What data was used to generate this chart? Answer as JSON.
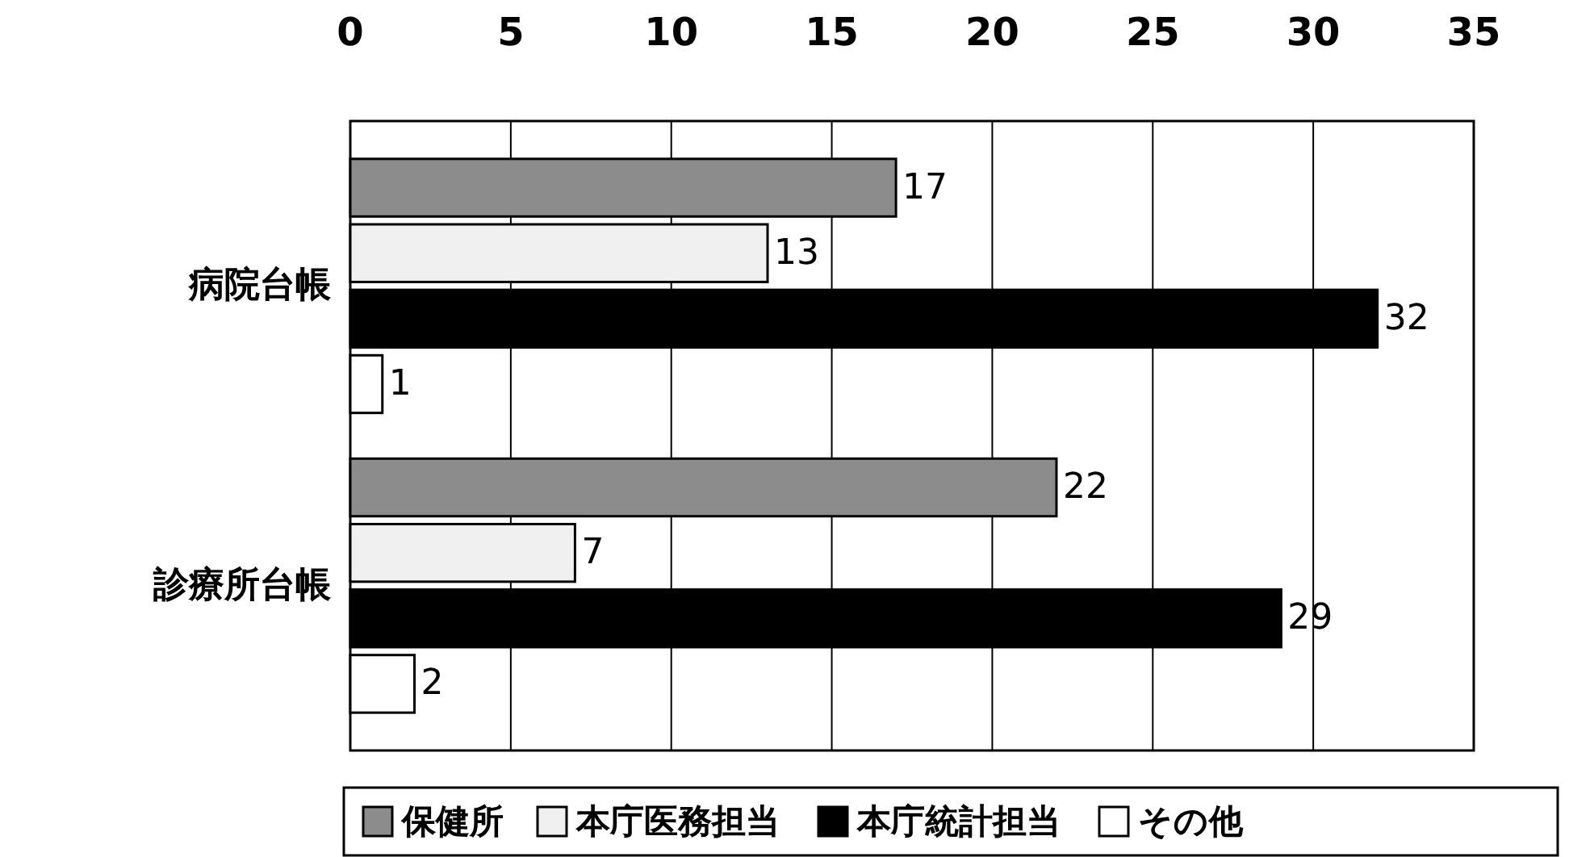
{
  "chart_data": {
    "type": "bar",
    "orientation": "horizontal",
    "categories": [
      "病院台帳",
      "診療所台帳"
    ],
    "series": [
      {
        "name": "保健所",
        "color": "#8c8c8c",
        "values": [
          17,
          22
        ]
      },
      {
        "name": "本庁医務担当",
        "color": "#f0f0f0",
        "values": [
          13,
          7
        ]
      },
      {
        "name": "本庁統計担当",
        "color": "#000000",
        "values": [
          32,
          29
        ]
      },
      {
        "name": "その他",
        "color": "#ffffff",
        "values": [
          1,
          2
        ]
      }
    ],
    "xlim": [
      0,
      35
    ],
    "xticks": [
      0,
      5,
      10,
      15,
      20,
      25,
      30,
      35
    ],
    "grid": "x",
    "data_labels": true,
    "legend": "bottom"
  }
}
